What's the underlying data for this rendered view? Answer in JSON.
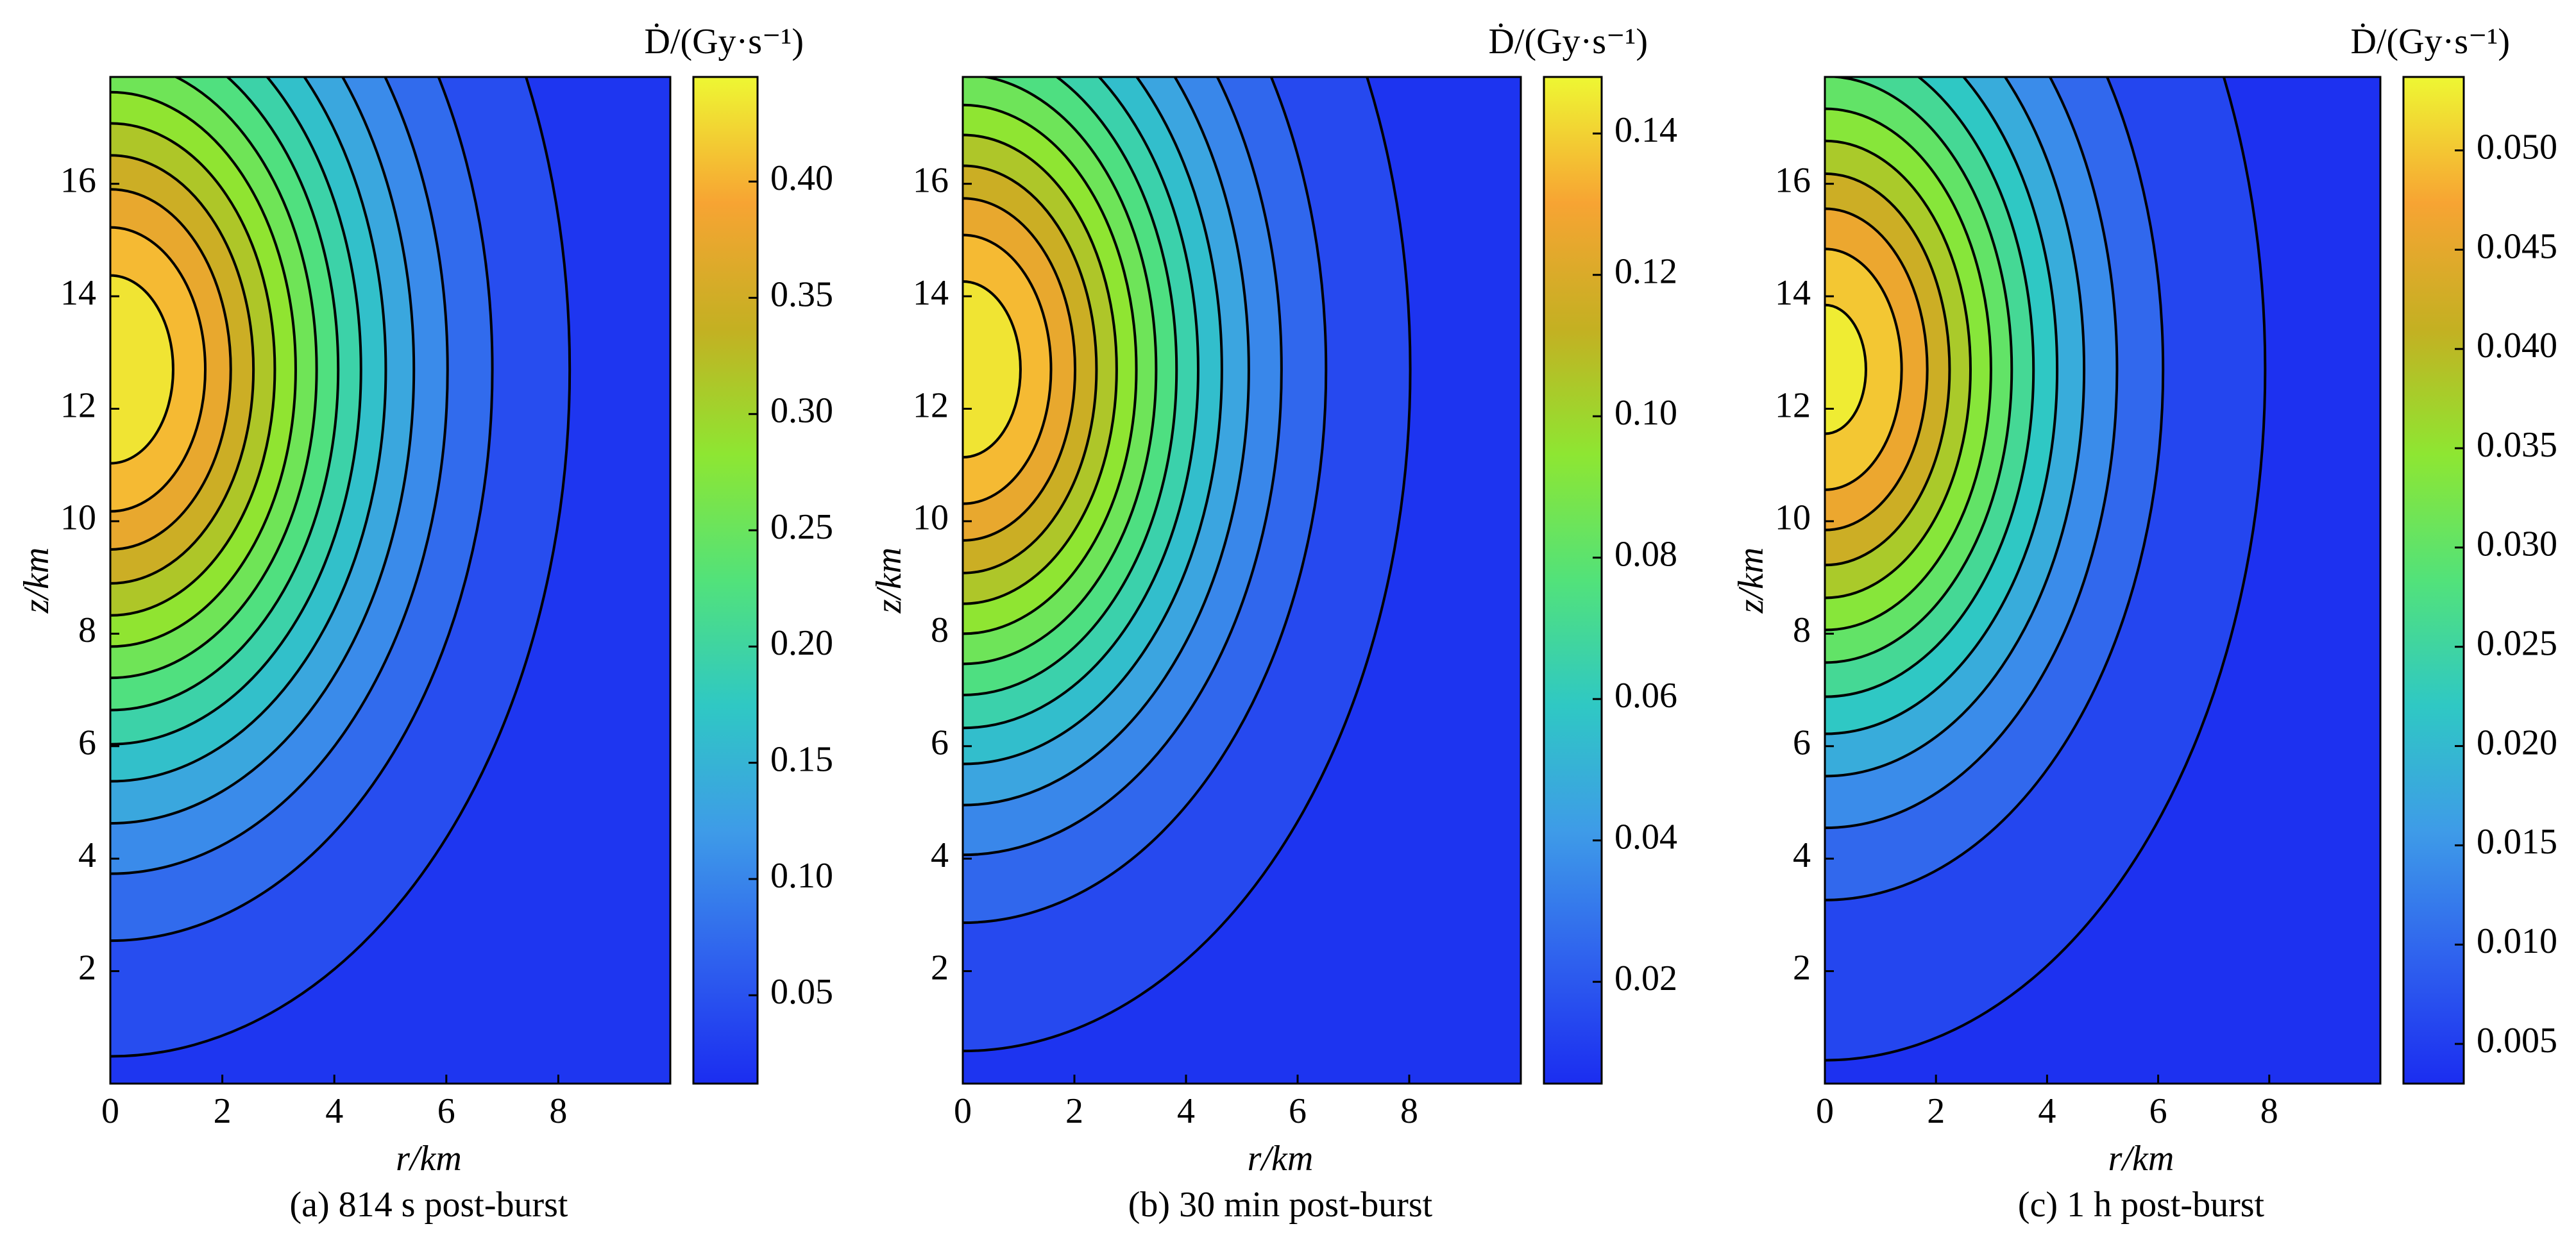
{
  "chart_data": [
    {
      "type": "contour",
      "caption": "(a) 814 s post-burst",
      "xlabel": "r/km",
      "ylabel": "z/km",
      "colorbar_label": "Ḋ/(Gy·s⁻¹)",
      "xlim": [
        0,
        10
      ],
      "xticks": [
        0,
        2,
        4,
        6,
        8
      ],
      "ylim": [
        0,
        17.9
      ],
      "yticks": [
        2,
        4,
        6,
        8,
        10,
        12,
        14,
        16
      ],
      "clim": [
        0.012,
        0.445
      ],
      "cticks": [
        0.05,
        {
          "value": 0.1,
          "label": "0.10"
        },
        0.15,
        {
          "value": 0.2,
          "label": "0.20"
        },
        0.25,
        {
          "value": 0.3,
          "label": "0.30"
        },
        0.35,
        {
          "value": 0.4,
          "label": "0.40"
        }
      ],
      "levels": [
        0.03,
        0.06,
        0.09,
        0.12,
        0.15,
        0.18,
        0.21,
        0.24,
        0.27,
        0.3,
        0.33,
        0.36,
        0.39,
        0.42
      ],
      "colormap": [
        "#1b2df0",
        "#2f62ee",
        "#3e9be8",
        "#2fc8c4",
        "#52e27a",
        "#8ee632",
        "#c4b022",
        "#f7a433",
        "#eef733"
      ]
    },
    {
      "type": "contour",
      "caption": "(b) 30 min post-burst",
      "xlabel": "r/km",
      "ylabel": "z/km",
      "colorbar_label": "Ḋ/(Gy·s⁻¹)",
      "xlim": [
        0,
        10
      ],
      "xticks": [
        0,
        2,
        4,
        6,
        8
      ],
      "ylim": [
        0,
        17.9
      ],
      "yticks": [
        2,
        4,
        6,
        8,
        10,
        12,
        14,
        16
      ],
      "clim": [
        0.0056,
        0.148
      ],
      "cticks": [
        0.02,
        0.04,
        0.06,
        0.08,
        {
          "value": 0.1,
          "label": "0.10"
        },
        0.12,
        0.14
      ],
      "levels": [
        0.01,
        0.02,
        0.03,
        0.04,
        0.05,
        0.06,
        0.07,
        0.08,
        0.09,
        0.1,
        0.11,
        0.12,
        0.13,
        0.14
      ],
      "colormap": [
        "#1b2df0",
        "#2f62ee",
        "#3e9be8",
        "#2fc8c4",
        "#52e27a",
        "#8ee632",
        "#c4b022",
        "#f7a433",
        "#eef733"
      ]
    },
    {
      "type": "contour",
      "caption": "(c) 1 h post-burst",
      "xlabel": "r/km",
      "ylabel": "z/km",
      "colorbar_label": "Ḋ/(Gy·s⁻¹)",
      "xlim": [
        0,
        10
      ],
      "xticks": [
        0,
        2,
        4,
        6,
        8
      ],
      "ylim": [
        0,
        17.9
      ],
      "yticks": [
        2,
        4,
        6,
        8,
        10,
        12,
        14,
        16
      ],
      "clim": [
        0.003,
        0.0537
      ],
      "cticks": [
        0.005,
        {
          "value": 0.01,
          "label": "0.010"
        },
        0.015,
        {
          "value": 0.02,
          "label": "0.020"
        },
        0.025,
        {
          "value": 0.03,
          "label": "0.030"
        },
        0.035,
        {
          "value": 0.04,
          "label": "0.040"
        },
        0.045,
        {
          "value": 0.05,
          "label": "0.050"
        }
      ],
      "levels": [
        0.004,
        0.008,
        0.012,
        0.016,
        0.02,
        0.024,
        0.028,
        0.032,
        0.036,
        0.04,
        0.044,
        0.048,
        0.052
      ],
      "colormap": [
        "#1b2df0",
        "#2f62ee",
        "#3e9be8",
        "#2fc8c4",
        "#52e27a",
        "#8ee632",
        "#c4b022",
        "#f7a433",
        "#eef733"
      ]
    }
  ]
}
